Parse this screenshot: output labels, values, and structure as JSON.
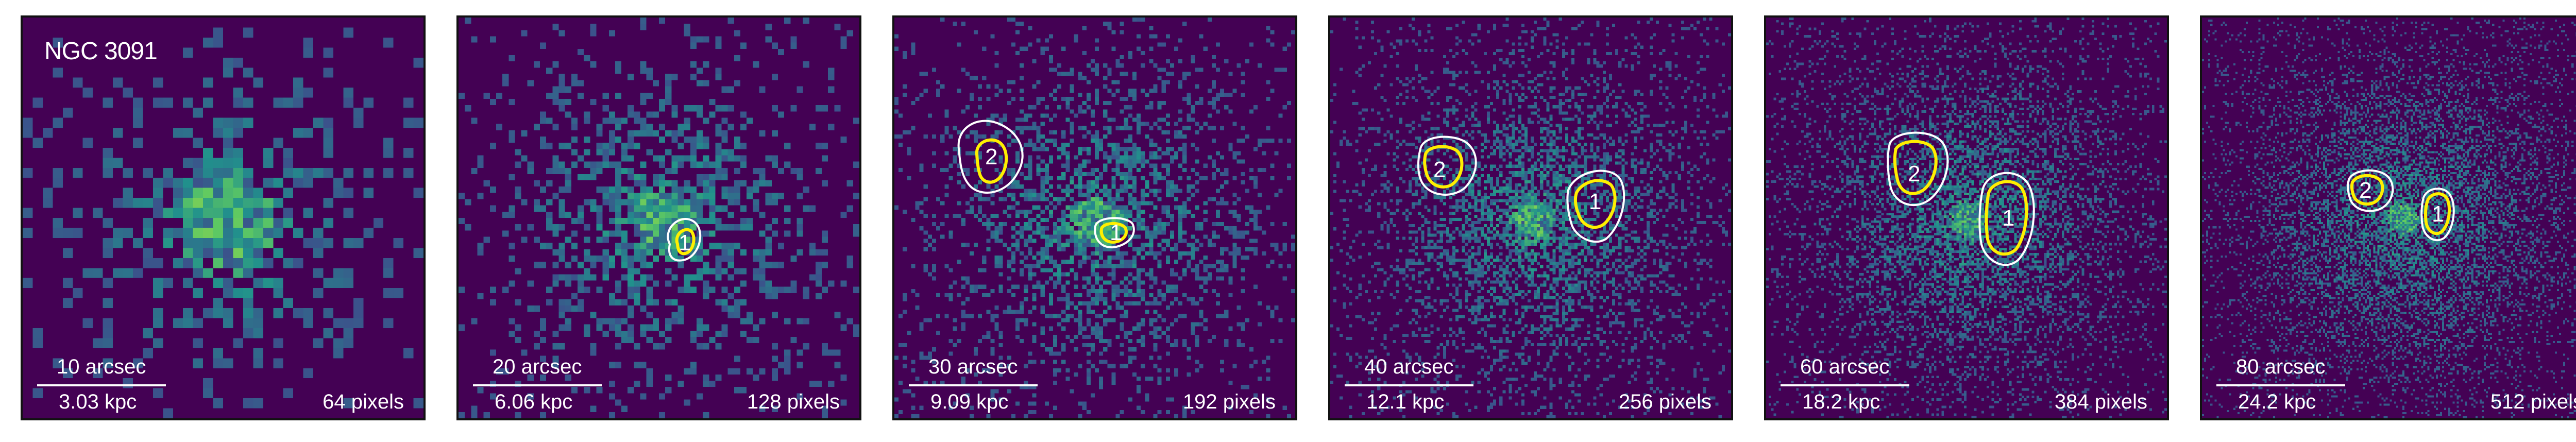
{
  "galaxy": "NGC 3091",
  "colors": {
    "background": "#440154",
    "contour_outer": "#ffffff",
    "contour_inner": "#ffef00"
  },
  "panels": [
    {
      "arcsec": "10 arcsec",
      "kpc": "3.03 kpc",
      "pixels": "64 pixels",
      "cavities": []
    },
    {
      "arcsec": "20 arcsec",
      "kpc": "6.06 kpc",
      "pixels": "128 pixels",
      "cavities": [
        "1"
      ]
    },
    {
      "arcsec": "30 arcsec",
      "kpc": "9.09 kpc",
      "pixels": "192 pixels",
      "cavities": [
        "2",
        "1"
      ]
    },
    {
      "arcsec": "40 arcsec",
      "kpc": "12.1 kpc",
      "pixels": "256 pixels",
      "cavities": [
        "2",
        "1"
      ]
    },
    {
      "arcsec": "60 arcsec",
      "kpc": "18.2 kpc",
      "pixels": "384 pixels",
      "cavities": [
        "2",
        "1"
      ]
    },
    {
      "arcsec": "80 arcsec",
      "kpc": "24.2 kpc",
      "pixels": "512 pixels",
      "cavities": [
        "2",
        "1"
      ]
    }
  ]
}
